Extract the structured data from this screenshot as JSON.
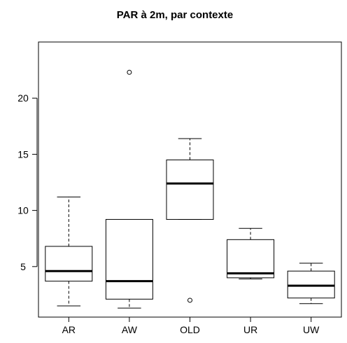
{
  "chart_data": {
    "type": "boxplot",
    "title": "PAR à 2m, par contexte",
    "xlabel": "",
    "ylabel": "",
    "categories": [
      "AR",
      "AW",
      "OLD",
      "UR",
      "UW"
    ],
    "boxes": [
      {
        "category": "AR",
        "whisker_low": 1.5,
        "q1": 3.7,
        "median": 4.6,
        "q3": 6.8,
        "whisker_high": 11.2,
        "outliers": []
      },
      {
        "category": "AW",
        "whisker_low": 1.3,
        "q1": 2.1,
        "median": 3.7,
        "q3": 9.2,
        "whisker_high": 9.2,
        "outliers": [
          22.3
        ]
      },
      {
        "category": "OLD",
        "whisker_low": 9.2,
        "q1": 9.2,
        "median": 12.4,
        "q3": 14.5,
        "whisker_high": 16.4,
        "outliers": [
          2.0
        ]
      },
      {
        "category": "UR",
        "whisker_low": 3.9,
        "q1": 4.0,
        "median": 4.4,
        "q3": 7.4,
        "whisker_high": 8.4,
        "outliers": []
      },
      {
        "category": "UW",
        "whisker_low": 1.7,
        "q1": 2.2,
        "median": 3.3,
        "q3": 4.6,
        "whisker_high": 5.3,
        "outliers": []
      }
    ],
    "ylim": [
      0.5,
      25
    ],
    "y_ticks": [
      5,
      10,
      15,
      20
    ],
    "grid": false
  }
}
